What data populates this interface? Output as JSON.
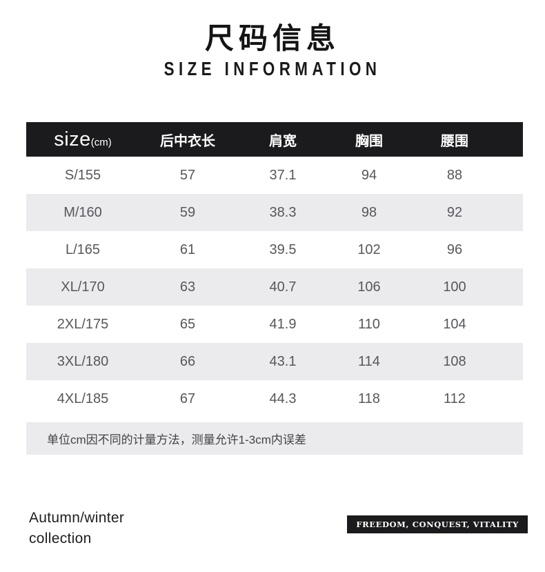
{
  "header": {
    "title_cn": "尺码信息",
    "title_en": "SIZE INFORMATION"
  },
  "table": {
    "size_label": "size",
    "size_unit": "(cm)",
    "columns": [
      "后中衣长",
      "肩宽",
      "胸围",
      "腰围"
    ],
    "rows": [
      {
        "size": "S/155",
        "values": [
          "57",
          "37.1",
          "94",
          "88"
        ]
      },
      {
        "size": "M/160",
        "values": [
          "59",
          "38.3",
          "98",
          "92"
        ]
      },
      {
        "size": "L/165",
        "values": [
          "61",
          "39.5",
          "102",
          "96"
        ]
      },
      {
        "size": "XL/170",
        "values": [
          "63",
          "40.7",
          "106",
          "100"
        ]
      },
      {
        "size": "2XL/175",
        "values": [
          "65",
          "41.9",
          "110",
          "104"
        ]
      },
      {
        "size": "3XL/180",
        "values": [
          "66",
          "43.1",
          "114",
          "108"
        ]
      },
      {
        "size": "4XL/185",
        "values": [
          "67",
          "44.3",
          "118",
          "112"
        ]
      }
    ],
    "note": "单位cm因不同的计量方法，测量允许1-3cm内误差"
  },
  "footer": {
    "collection_line1": "Autumn/winter",
    "collection_line2": "collection",
    "badge": "FREEDOM, CONQUEST, VITALITY"
  },
  "colors": {
    "header_bg": "#1b1b1d",
    "alt_row_bg": "#ebebee",
    "badge_bg": "#1b1b1d",
    "data_text": "#56575b"
  }
}
